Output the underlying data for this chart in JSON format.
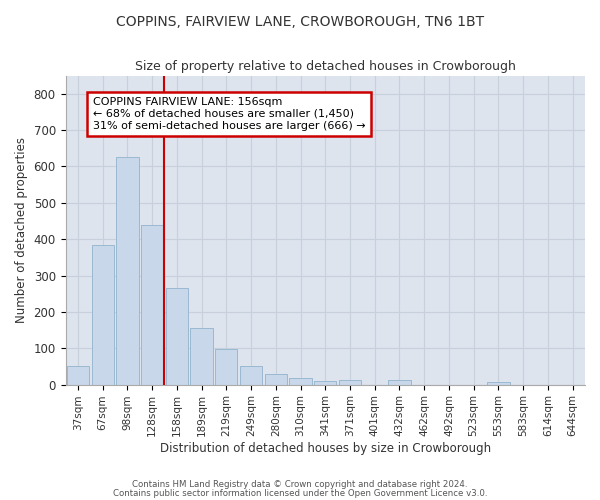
{
  "title": "COPPINS, FAIRVIEW LANE, CROWBOROUGH, TN6 1BT",
  "subtitle": "Size of property relative to detached houses in Crowborough",
  "xlabel": "Distribution of detached houses by size in Crowborough",
  "ylabel": "Number of detached properties",
  "bar_labels": [
    "37sqm",
    "67sqm",
    "98sqm",
    "128sqm",
    "158sqm",
    "189sqm",
    "219sqm",
    "249sqm",
    "280sqm",
    "310sqm",
    "341sqm",
    "371sqm",
    "401sqm",
    "432sqm",
    "462sqm",
    "492sqm",
    "523sqm",
    "553sqm",
    "583sqm",
    "614sqm",
    "644sqm"
  ],
  "bar_values": [
    50,
    385,
    625,
    440,
    265,
    155,
    98,
    52,
    30,
    17,
    10,
    13,
    0,
    13,
    0,
    0,
    0,
    8,
    0,
    0,
    0
  ],
  "bar_color": "#c8d8ea",
  "bar_edge_color": "#9ab8d0",
  "red_line_index": 4,
  "annotation_title": "COPPINS FAIRVIEW LANE: 156sqm",
  "annotation_line2": "← 68% of detached houses are smaller (1,450)",
  "annotation_line3": "31% of semi-detached houses are larger (666) →",
  "annotation_box_facecolor": "#ffffff",
  "annotation_box_edgecolor": "#cc0000",
  "red_line_color": "#cc0000",
  "ylim": [
    0,
    850
  ],
  "yticks": [
    0,
    100,
    200,
    300,
    400,
    500,
    600,
    700,
    800
  ],
  "grid_color": "#c8d0dc",
  "plot_bg_color": "#dde4ee",
  "fig_bg_color": "#ffffff",
  "footer_line1": "Contains HM Land Registry data © Crown copyright and database right 2024.",
  "footer_line2": "Contains public sector information licensed under the Open Government Licence v3.0."
}
